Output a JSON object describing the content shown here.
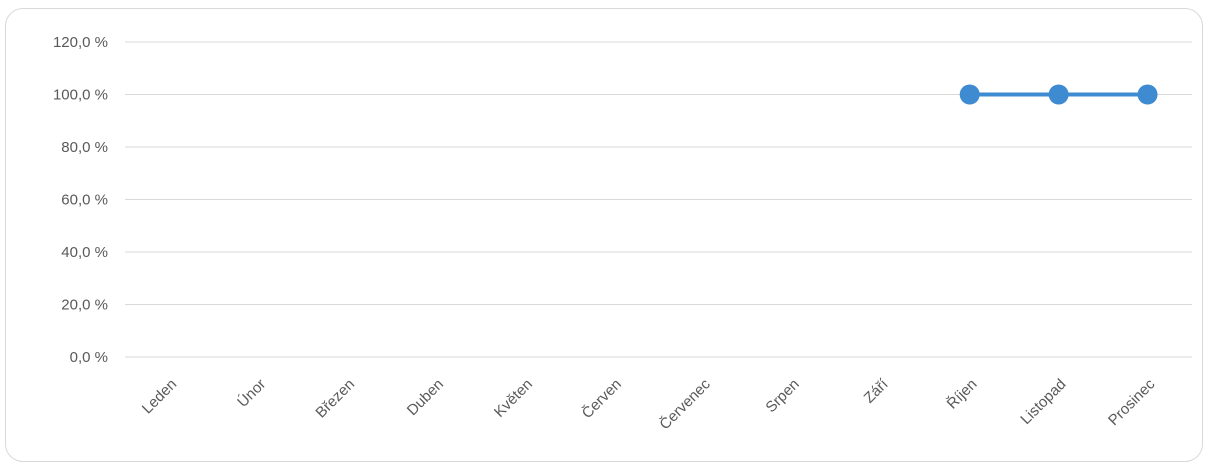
{
  "chart_data": {
    "type": "line",
    "title": "",
    "xlabel": "",
    "ylabel": "",
    "categories": [
      "Leden",
      "Únor",
      "Březen",
      "Duben",
      "Květen",
      "Červen",
      "Červenec",
      "Srpen",
      "Září",
      "Říjen",
      "Listopad",
      "Prosinec"
    ],
    "series": [
      {
        "values": [
          null,
          null,
          null,
          null,
          null,
          null,
          null,
          null,
          null,
          100,
          100,
          100
        ],
        "color": "#3f8bd1"
      }
    ],
    "yticks": [
      "0,0 %",
      "20,0 %",
      "40,0 %",
      "60,0 %",
      "80,0 %",
      "100,0 %",
      "120,0 %"
    ],
    "ylim": [
      0,
      120
    ],
    "grid": true,
    "legend": "none"
  }
}
